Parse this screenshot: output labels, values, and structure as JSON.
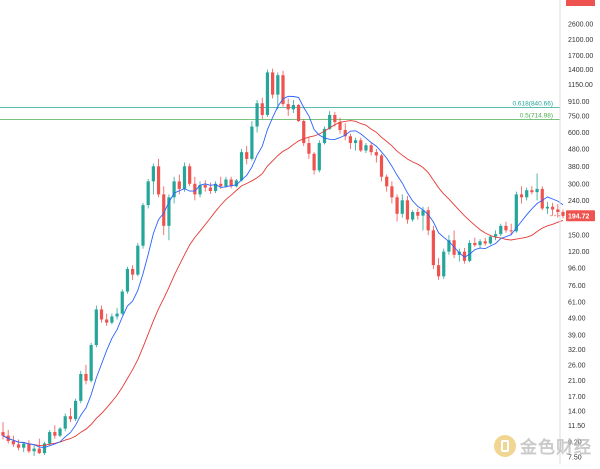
{
  "chart_data": {
    "type": "candlestick",
    "scale": "log",
    "grid": false,
    "y_ticks": [
      "2600.00",
      "2100.00",
      "1700.00",
      "1400.00",
      "1150.00",
      "910.00",
      "750.00",
      "600.00",
      "480.00",
      "380.00",
      "300.00",
      "240.00",
      "190.00",
      "150.00",
      "120.00",
      "96.00",
      "76.00",
      "61.00",
      "49.00",
      "39.00",
      "32.00",
      "26.00",
      "21.00",
      "17.00",
      "14.00",
      "11.50",
      "9.20",
      "7.50"
    ],
    "ylim": [
      7.2,
      3400
    ],
    "current_price": {
      "label": "194.72",
      "value": 194.72,
      "color": "#ef5350"
    },
    "top_price_tag": {
      "label": "3x.xx",
      "color": "#ef5350"
    },
    "fib_levels": [
      {
        "label": "0.618(840.66)",
        "value": 840.66,
        "color": "#26a69a"
      },
      {
        "label": "0.5(714.98)",
        "value": 714.98,
        "color": "#4caf50"
      }
    ],
    "colors": {
      "up": "#26a69a",
      "down": "#ef5350",
      "ma_fast": "#2962ff",
      "ma_slow": "#e53935"
    },
    "candles": [
      {
        "o": 10.5,
        "h": 12.0,
        "l": 9.5,
        "c": 10.0
      },
      {
        "o": 10.0,
        "h": 10.8,
        "l": 9.0,
        "c": 9.3
      },
      {
        "o": 9.3,
        "h": 10.0,
        "l": 8.6,
        "c": 8.9
      },
      {
        "o": 8.9,
        "h": 9.5,
        "l": 8.2,
        "c": 8.5
      },
      {
        "o": 8.5,
        "h": 9.2,
        "l": 8.0,
        "c": 9.0
      },
      {
        "o": 9.0,
        "h": 9.4,
        "l": 7.9,
        "c": 8.1
      },
      {
        "o": 8.1,
        "h": 8.8,
        "l": 7.6,
        "c": 8.4
      },
      {
        "o": 8.4,
        "h": 9.6,
        "l": 7.8,
        "c": 7.9
      },
      {
        "o": 7.9,
        "h": 9.2,
        "l": 7.7,
        "c": 9.0
      },
      {
        "o": 9.0,
        "h": 10.8,
        "l": 8.8,
        "c": 10.5
      },
      {
        "o": 10.5,
        "h": 11.5,
        "l": 9.6,
        "c": 10.0
      },
      {
        "o": 10.0,
        "h": 11.2,
        "l": 9.8,
        "c": 11.0
      },
      {
        "o": 11.0,
        "h": 13.5,
        "l": 10.6,
        "c": 13.0
      },
      {
        "o": 13.0,
        "h": 14.5,
        "l": 12.0,
        "c": 12.5
      },
      {
        "o": 12.5,
        "h": 16.5,
        "l": 12.2,
        "c": 16.0
      },
      {
        "o": 16.0,
        "h": 24.0,
        "l": 15.5,
        "c": 23.0
      },
      {
        "o": 23.0,
        "h": 26.0,
        "l": 20.0,
        "c": 21.0
      },
      {
        "o": 21.0,
        "h": 35.0,
        "l": 20.5,
        "c": 34.0
      },
      {
        "o": 34.0,
        "h": 58.0,
        "l": 33.0,
        "c": 55.0
      },
      {
        "o": 55.0,
        "h": 58.0,
        "l": 46.0,
        "c": 48.0
      },
      {
        "o": 48.0,
        "h": 52.0,
        "l": 44.0,
        "c": 46.0
      },
      {
        "o": 46.0,
        "h": 52.0,
        "l": 45.0,
        "c": 50.0
      },
      {
        "o": 50.0,
        "h": 56.0,
        "l": 48.0,
        "c": 52.0
      },
      {
        "o": 52.0,
        "h": 72.0,
        "l": 51.0,
        "c": 70.0
      },
      {
        "o": 70.0,
        "h": 98.0,
        "l": 68.0,
        "c": 95.0
      },
      {
        "o": 95.0,
        "h": 100.0,
        "l": 82.0,
        "c": 88.0
      },
      {
        "o": 88.0,
        "h": 135.0,
        "l": 86.0,
        "c": 130.0
      },
      {
        "o": 130.0,
        "h": 232.0,
        "l": 125.0,
        "c": 225.0
      },
      {
        "o": 225.0,
        "h": 320.0,
        "l": 215.0,
        "c": 310.0
      },
      {
        "o": 310.0,
        "h": 395.0,
        "l": 260.0,
        "c": 380.0
      },
      {
        "o": 380.0,
        "h": 420.0,
        "l": 250.0,
        "c": 260.0
      },
      {
        "o": 260.0,
        "h": 290.0,
        "l": 150.0,
        "c": 170.0
      },
      {
        "o": 170.0,
        "h": 260.0,
        "l": 140.0,
        "c": 250.0
      },
      {
        "o": 250.0,
        "h": 330.0,
        "l": 230.0,
        "c": 310.0
      },
      {
        "o": 310.0,
        "h": 340.0,
        "l": 260.0,
        "c": 280.0
      },
      {
        "o": 280.0,
        "h": 400.0,
        "l": 270.0,
        "c": 380.0
      },
      {
        "o": 380.0,
        "h": 395.0,
        "l": 290.0,
        "c": 300.0
      },
      {
        "o": 300.0,
        "h": 330.0,
        "l": 240.0,
        "c": 260.0
      },
      {
        "o": 260.0,
        "h": 310.0,
        "l": 250.0,
        "c": 295.0
      },
      {
        "o": 295.0,
        "h": 315.0,
        "l": 270.0,
        "c": 285.0
      },
      {
        "o": 285.0,
        "h": 305.0,
        "l": 262.0,
        "c": 272.0
      },
      {
        "o": 272.0,
        "h": 310.0,
        "l": 265.0,
        "c": 300.0
      },
      {
        "o": 300.0,
        "h": 330.0,
        "l": 280.0,
        "c": 290.0
      },
      {
        "o": 290.0,
        "h": 330.0,
        "l": 285.0,
        "c": 318.0
      },
      {
        "o": 318.0,
        "h": 330.0,
        "l": 282.0,
        "c": 290.0
      },
      {
        "o": 290.0,
        "h": 320.0,
        "l": 286.0,
        "c": 314.0
      },
      {
        "o": 314.0,
        "h": 480.0,
        "l": 310.0,
        "c": 460.0
      },
      {
        "o": 460.0,
        "h": 500.0,
        "l": 390.0,
        "c": 420.0
      },
      {
        "o": 420.0,
        "h": 700.0,
        "l": 410.0,
        "c": 650.0
      },
      {
        "o": 650.0,
        "h": 930.0,
        "l": 600.0,
        "c": 890.0
      },
      {
        "o": 890.0,
        "h": 960.0,
        "l": 720.0,
        "c": 760.0
      },
      {
        "o": 760.0,
        "h": 1400.0,
        "l": 740.0,
        "c": 1350.0
      },
      {
        "o": 1350.0,
        "h": 1420.0,
        "l": 950.0,
        "c": 1000.0
      },
      {
        "o": 1000.0,
        "h": 1350.0,
        "l": 820.0,
        "c": 1300.0
      },
      {
        "o": 1300.0,
        "h": 1380.0,
        "l": 850.0,
        "c": 880.0
      },
      {
        "o": 880.0,
        "h": 950.0,
        "l": 750.0,
        "c": 820.0
      },
      {
        "o": 820.0,
        "h": 930.0,
        "l": 780.0,
        "c": 870.0
      },
      {
        "o": 870.0,
        "h": 880.0,
        "l": 690.0,
        "c": 700.0
      },
      {
        "o": 700.0,
        "h": 720.0,
        "l": 500.0,
        "c": 520.0
      },
      {
        "o": 520.0,
        "h": 560.0,
        "l": 420.0,
        "c": 450.0
      },
      {
        "o": 450.0,
        "h": 460.0,
        "l": 340.0,
        "c": 360.0
      },
      {
        "o": 360.0,
        "h": 540.0,
        "l": 350.0,
        "c": 520.0
      },
      {
        "o": 520.0,
        "h": 650.0,
        "l": 510.0,
        "c": 630.0
      },
      {
        "o": 630.0,
        "h": 800.0,
        "l": 620.0,
        "c": 760.0
      },
      {
        "o": 760.0,
        "h": 790.0,
        "l": 650.0,
        "c": 690.0
      },
      {
        "o": 690.0,
        "h": 730.0,
        "l": 590.0,
        "c": 620.0
      },
      {
        "o": 620.0,
        "h": 680.0,
        "l": 540.0,
        "c": 570.0
      },
      {
        "o": 570.0,
        "h": 590.0,
        "l": 480.0,
        "c": 520.0
      },
      {
        "o": 520.0,
        "h": 560.0,
        "l": 470.0,
        "c": 540.0
      },
      {
        "o": 540.0,
        "h": 560.0,
        "l": 460.0,
        "c": 470.0
      },
      {
        "o": 470.0,
        "h": 520.0,
        "l": 455.0,
        "c": 505.0
      },
      {
        "o": 505.0,
        "h": 520.0,
        "l": 440.0,
        "c": 460.0
      },
      {
        "o": 460.0,
        "h": 480.0,
        "l": 400.0,
        "c": 440.0
      },
      {
        "o": 440.0,
        "h": 450.0,
        "l": 310.0,
        "c": 330.0
      },
      {
        "o": 330.0,
        "h": 340.0,
        "l": 270.0,
        "c": 290.0
      },
      {
        "o": 290.0,
        "h": 310.0,
        "l": 230.0,
        "c": 250.0
      },
      {
        "o": 250.0,
        "h": 260.0,
        "l": 180.0,
        "c": 200.0
      },
      {
        "o": 200.0,
        "h": 260.0,
        "l": 190.0,
        "c": 240.0
      },
      {
        "o": 240.0,
        "h": 255.0,
        "l": 175.0,
        "c": 185.0
      },
      {
        "o": 185.0,
        "h": 210.0,
        "l": 180.0,
        "c": 205.0
      },
      {
        "o": 205.0,
        "h": 215.0,
        "l": 185.0,
        "c": 195.0
      },
      {
        "o": 195.0,
        "h": 220.0,
        "l": 160.0,
        "c": 210.0
      },
      {
        "o": 210.0,
        "h": 220.0,
        "l": 150.0,
        "c": 160.0
      },
      {
        "o": 160.0,
        "h": 170.0,
        "l": 95.0,
        "c": 100.0
      },
      {
        "o": 100.0,
        "h": 110.0,
        "l": 82.0,
        "c": 86.0
      },
      {
        "o": 86.0,
        "h": 125.0,
        "l": 83.0,
        "c": 120.0
      },
      {
        "o": 120.0,
        "h": 150.0,
        "l": 115.0,
        "c": 140.0
      },
      {
        "o": 140.0,
        "h": 160.0,
        "l": 110.0,
        "c": 115.0
      },
      {
        "o": 115.0,
        "h": 125.0,
        "l": 105.0,
        "c": 120.0
      },
      {
        "o": 120.0,
        "h": 126.0,
        "l": 102.0,
        "c": 106.0
      },
      {
        "o": 106.0,
        "h": 140.0,
        "l": 104.0,
        "c": 135.0
      },
      {
        "o": 135.0,
        "h": 145.0,
        "l": 128.0,
        "c": 131.0
      },
      {
        "o": 131.0,
        "h": 142.0,
        "l": 126.0,
        "c": 138.0
      },
      {
        "o": 138.0,
        "h": 145.0,
        "l": 130.0,
        "c": 134.0
      },
      {
        "o": 134.0,
        "h": 150.0,
        "l": 132.0,
        "c": 147.0
      },
      {
        "o": 147.0,
        "h": 160.0,
        "l": 140.0,
        "c": 152.0
      },
      {
        "o": 152.0,
        "h": 175.0,
        "l": 148.0,
        "c": 170.0
      },
      {
        "o": 170.0,
        "h": 180.0,
        "l": 155.0,
        "c": 160.0
      },
      {
        "o": 160.0,
        "h": 175.0,
        "l": 150.0,
        "c": 158.0
      },
      {
        "o": 158.0,
        "h": 270.0,
        "l": 155.0,
        "c": 260.0
      },
      {
        "o": 260.0,
        "h": 290.0,
        "l": 230.0,
        "c": 250.0
      },
      {
        "o": 250.0,
        "h": 285.0,
        "l": 240.0,
        "c": 275.0
      },
      {
        "o": 275.0,
        "h": 290.0,
        "l": 260.0,
        "c": 268.0
      },
      {
        "o": 268.0,
        "h": 345.0,
        "l": 240.0,
        "c": 280.0
      },
      {
        "o": 280.0,
        "h": 290.0,
        "l": 210.0,
        "c": 215.0
      },
      {
        "o": 215.0,
        "h": 235.0,
        "l": 200.0,
        "c": 220.0
      },
      {
        "o": 220.0,
        "h": 232.0,
        "l": 195.0,
        "c": 212.0
      },
      {
        "o": 212.0,
        "h": 228.0,
        "l": 190.0,
        "c": 205.0
      },
      {
        "o": 205.0,
        "h": 212.0,
        "l": 188.0,
        "c": 194.72
      }
    ]
  }
}
